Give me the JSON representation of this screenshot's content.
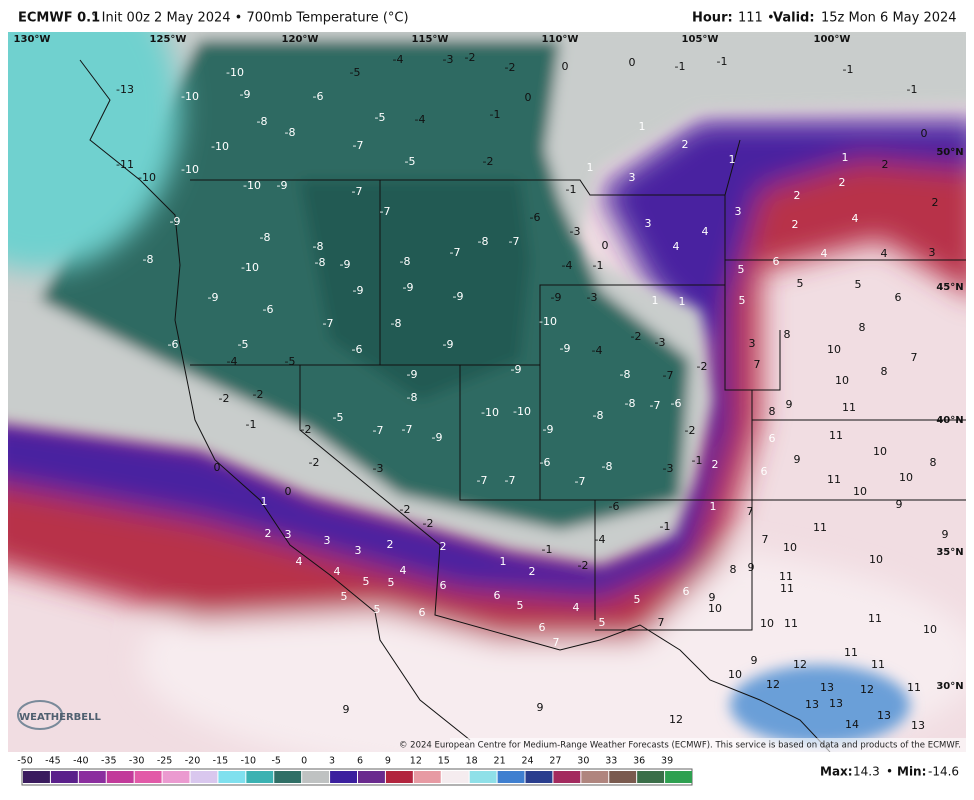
{
  "header": {
    "model": "ECMWF 0.1",
    "title_rest": "° Init 00z 2 May 2024 • 700mb Temperature (°C)",
    "hour_label": "Hour:",
    "hour": "111 •",
    "valid_label": "Valid:",
    "valid": "15z Mon 6 May 2024"
  },
  "map": {
    "longitudes": [
      "130°W",
      "125°W",
      "120°W",
      "115°W",
      "110°W",
      "105°W",
      "100°W"
    ],
    "latitudes": [
      "50°N",
      "45°N",
      "40°N",
      "35°N",
      "30°N"
    ],
    "temperature_labels": [
      -10,
      -13,
      -10,
      -9,
      -6,
      -5,
      -4,
      -3,
      -2,
      -2,
      0,
      0,
      -1,
      -1,
      -1,
      -1,
      -8,
      -5,
      -4,
      -1,
      0,
      1,
      0,
      2,
      1,
      2,
      1,
      -8,
      -7,
      -5,
      -2,
      -10,
      -10,
      -11,
      -10,
      -9,
      -10,
      -7,
      -7,
      1,
      3,
      2,
      2,
      -1,
      -9,
      -8,
      -8,
      -6,
      -3,
      0,
      3,
      4,
      4,
      3,
      2,
      4,
      2,
      -8,
      -10,
      -8,
      -9,
      -8,
      -7,
      -8,
      -7,
      -4,
      -1,
      5,
      6,
      4,
      4,
      3,
      -9,
      -6,
      -9,
      -9,
      -9,
      -9,
      -3,
      1,
      1,
      5,
      5,
      5,
      6,
      -6,
      -5,
      -7,
      -8,
      -9,
      -10,
      -2,
      -3,
      3,
      8,
      8,
      10,
      -4,
      -5,
      -6,
      -9,
      -8,
      -9,
      -9,
      -4,
      -8,
      -7,
      -2,
      7,
      10,
      8,
      7,
      -2,
      -2,
      -5,
      -10,
      -10,
      -8,
      -8,
      -7,
      -6,
      8,
      9,
      11,
      -1,
      -2,
      -7,
      -7,
      -9,
      -9,
      -2,
      6,
      11,
      10,
      -2,
      -6,
      -8,
      -3,
      0,
      2,
      9,
      11,
      10,
      8,
      -3,
      -7,
      -7,
      -7,
      -1,
      6,
      1,
      0,
      -2,
      -1,
      1,
      7,
      10,
      9,
      11,
      9,
      2,
      3,
      3,
      -2,
      -6,
      3,
      2,
      2,
      -1,
      -4,
      7,
      10,
      1,
      2,
      -2,
      4,
      4,
      4,
      5,
      5,
      6,
      10,
      8,
      9,
      11,
      6,
      5,
      6,
      9,
      10,
      11,
      5,
      5,
      6,
      5,
      4,
      6,
      7,
      5,
      7,
      10,
      11,
      11,
      10,
      9,
      12,
      11,
      11,
      10,
      12,
      13,
      12,
      11,
      13,
      13,
      14,
      13,
      12,
      9,
      9,
      13
    ],
    "logo": "WEATHERBELL",
    "credit": "© 2024 European Centre for Medium-Range Weather Forecasts (ECMWF). This service is based on data and products of the ECMWF."
  },
  "colorbar": {
    "ticks": [
      -50,
      -45,
      -40,
      -35,
      -30,
      -25,
      -20,
      -15,
      -10,
      -5,
      0,
      3,
      6,
      9,
      12,
      15,
      18,
      21,
      24,
      27,
      30,
      33,
      36,
      39
    ],
    "colors": [
      "#3a1b5e",
      "#5a1f8a",
      "#8b2e9e",
      "#c23a9a",
      "#e25aa8",
      "#eb9ad0",
      "#d9c7ee",
      "#7fe0ee",
      "#3bb2b2",
      "#2f6f66",
      "#bfc2c2",
      "#3b1f9e",
      "#6a2a8e",
      "#b2243e",
      "#e79aa3",
      "#f5ecef",
      "#8fe0e8",
      "#3f7fd0",
      "#2a3e8e",
      "#a32a5e",
      "#b0857e",
      "#7a5a4e",
      "#3a6e48",
      "#2ea050"
    ]
  },
  "footer": {
    "max_label": "Max:",
    "max": 14.3,
    "separator": "•",
    "min_label": "Min:",
    "min": -14.6
  }
}
